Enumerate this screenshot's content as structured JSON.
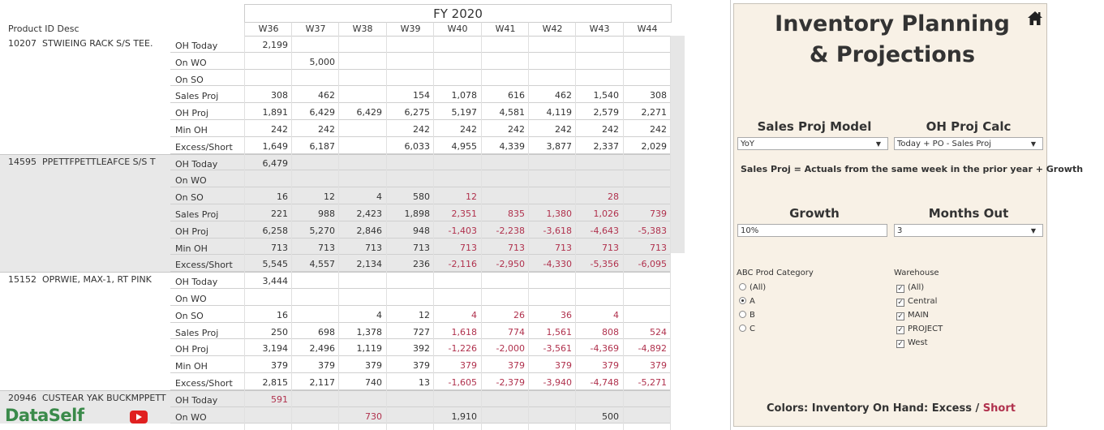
{
  "table": {
    "fiscal_year": "FY 2020",
    "product_col_header": "Product ID Desc",
    "weeks": [
      "W36",
      "W37",
      "W38",
      "W39",
      "W40",
      "W41",
      "W42",
      "W43",
      "W44"
    ],
    "products": [
      {
        "desc": "10207  STWIEING RACK S/S TEE.",
        "shaded": false,
        "rows": [
          {
            "measure": "OH Today",
            "values": [
              "2,199",
              "",
              "",
              "",
              "",
              "",
              "",
              "",
              ""
            ]
          },
          {
            "measure": "On WO",
            "values": [
              "",
              "5,000",
              "",
              "",
              "",
              "",
              "",
              "",
              ""
            ]
          },
          {
            "measure": "On SO",
            "values": [
              "",
              "",
              "",
              "",
              "",
              "",
              "",
              "",
              ""
            ]
          },
          {
            "measure": "Sales Proj",
            "values": [
              "308",
              "462",
              "",
              "154",
              "1,078",
              "616",
              "462",
              "1,540",
              "308"
            ]
          },
          {
            "measure": "OH Proj",
            "values": [
              "1,891",
              "6,429",
              "6,429",
              "6,275",
              "5,197",
              "4,581",
              "4,119",
              "2,579",
              "2,271"
            ]
          },
          {
            "measure": "Min OH",
            "values": [
              "242",
              "242",
              "",
              "242",
              "242",
              "242",
              "242",
              "242",
              "242"
            ]
          },
          {
            "measure": "Excess/Short",
            "values": [
              "1,649",
              "6,187",
              "",
              "6,033",
              "4,955",
              "4,339",
              "3,877",
              "2,337",
              "2,029"
            ]
          }
        ]
      },
      {
        "desc": "14595  PPETTFPETTLEAFCE S/S T",
        "shaded": true,
        "rows": [
          {
            "measure": "OH Today",
            "values": [
              "6,479",
              "",
              "",
              "",
              "",
              "",
              "",
              "",
              ""
            ]
          },
          {
            "measure": "On WO",
            "values": [
              "",
              "",
              "",
              "",
              "",
              "",
              "",
              "",
              ""
            ]
          },
          {
            "measure": "On SO",
            "values": [
              "16",
              "12",
              "4",
              "580",
              "12",
              "",
              "",
              "28",
              ""
            ]
          },
          {
            "measure": "Sales Proj",
            "values": [
              "221",
              "988",
              "2,423",
              "1,898",
              "2,351",
              "835",
              "1,380",
              "1,026",
              "739"
            ]
          },
          {
            "measure": "OH Proj",
            "values": [
              "6,258",
              "5,270",
              "2,846",
              "948",
              "-1,403",
              "-2,238",
              "-3,618",
              "-4,643",
              "-5,383"
            ]
          },
          {
            "measure": "Min OH",
            "values": [
              "713",
              "713",
              "713",
              "713",
              "713",
              "713",
              "713",
              "713",
              "713"
            ]
          },
          {
            "measure": "Excess/Short",
            "values": [
              "5,545",
              "4,557",
              "2,134",
              "236",
              "-2,116",
              "-2,950",
              "-4,330",
              "-5,356",
              "-6,095"
            ]
          }
        ]
      },
      {
        "desc": "15152  OPRWIE, MAX-1, RT PINK",
        "shaded": false,
        "rows": [
          {
            "measure": "OH Today",
            "values": [
              "3,444",
              "",
              "",
              "",
              "",
              "",
              "",
              "",
              ""
            ]
          },
          {
            "measure": "On WO",
            "values": [
              "",
              "",
              "",
              "",
              "",
              "",
              "",
              "",
              ""
            ]
          },
          {
            "measure": "On SO",
            "values": [
              "16",
              "",
              "4",
              "12",
              "4",
              "26",
              "36",
              "4",
              ""
            ]
          },
          {
            "measure": "Sales Proj",
            "values": [
              "250",
              "698",
              "1,378",
              "727",
              "1,618",
              "774",
              "1,561",
              "808",
              "524"
            ]
          },
          {
            "measure": "OH Proj",
            "values": [
              "3,194",
              "2,496",
              "1,119",
              "392",
              "-1,226",
              "-2,000",
              "-3,561",
              "-4,369",
              "-4,892"
            ]
          },
          {
            "measure": "Min OH",
            "values": [
              "379",
              "379",
              "379",
              "379",
              "379",
              "379",
              "379",
              "379",
              "379"
            ]
          },
          {
            "measure": "Excess/Short",
            "values": [
              "2,815",
              "2,117",
              "740",
              "13",
              "-1,605",
              "-2,379",
              "-3,940",
              "-4,748",
              "-5,271"
            ]
          }
        ]
      },
      {
        "desc": "20946  CUSTEAR YAK BUCKMPPETT",
        "shaded": true,
        "rows": [
          {
            "measure": "OH Today",
            "values": [
              "591",
              "",
              "",
              "",
              "",
              "",
              "",
              "",
              ""
            ]
          },
          {
            "measure": "On WO",
            "values": [
              "",
              "",
              "730",
              "",
              "1,910",
              "",
              "",
              "500",
              ""
            ]
          }
        ]
      }
    ]
  },
  "panel": {
    "title_line1": "Inventory Planning",
    "title_line2": "& Projections",
    "sales_proj_model": {
      "label": "Sales Proj Model",
      "value": "YoY"
    },
    "oh_proj_calc": {
      "label": "OH Proj Calc",
      "value": "Today + PO - Sales Proj"
    },
    "description": "Sales Proj = Actuals from the same week in the prior year + Growth",
    "growth": {
      "label": "Growth",
      "value": "10%"
    },
    "months_out": {
      "label": "Months Out",
      "value": "3"
    },
    "abc_category": {
      "title": "ABC Prod Category",
      "options": [
        "(All)",
        "A",
        "B",
        "C"
      ],
      "selected": "A"
    },
    "warehouse": {
      "title": "Warehouse",
      "options": [
        "(All)",
        "Central",
        "MAIN",
        "PROJECT",
        "West"
      ]
    },
    "legend": {
      "prefix": "Colors: Inventory On Hand: Excess / ",
      "short": "Short"
    }
  },
  "branding": {
    "logo_text": "DataSelf"
  },
  "colors": {
    "negative": "#b0314d",
    "panel_bg": "#f8f1e6",
    "logo_green": "#3a8a4a"
  },
  "icons": [
    "home-icon",
    "youtube-icon",
    "caret-down-icon"
  ]
}
